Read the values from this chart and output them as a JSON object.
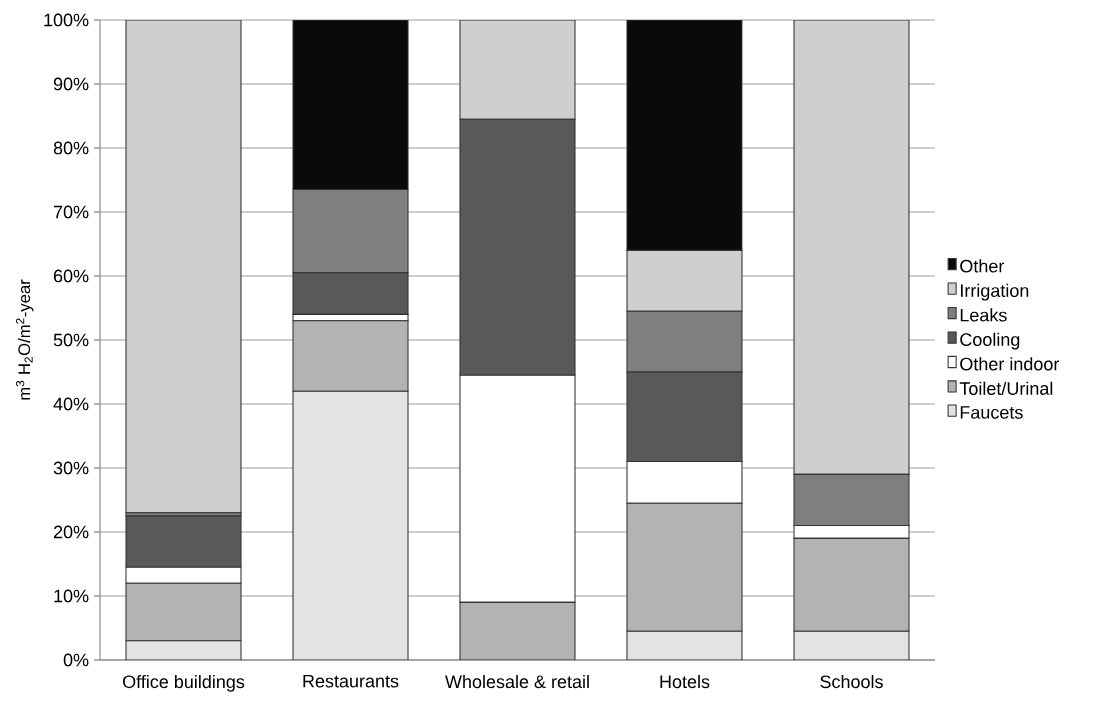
{
  "chart_data": {
    "type": "bar",
    "stacked": true,
    "ylabel": "m$^{3}$ H$_{2}$O/m$^{2}$-year",
    "categories": [
      "Office buildings",
      "Restaurants",
      "Wholesale & retail",
      "Hotels",
      "Schools"
    ],
    "ylim": [
      0,
      100
    ],
    "yticks": [
      {
        "value": 0,
        "label": "0%"
      },
      {
        "value": 10,
        "label": "10%"
      },
      {
        "value": 20,
        "label": "20%"
      },
      {
        "value": 30,
        "label": "30%"
      },
      {
        "value": 40,
        "label": "40%"
      },
      {
        "value": 50,
        "label": "50%"
      },
      {
        "value": 60,
        "label": "60%"
      },
      {
        "value": 70,
        "label": "70%"
      },
      {
        "value": 80,
        "label": "80%"
      },
      {
        "value": 90,
        "label": "90%"
      },
      {
        "value": 100,
        "label": "100%"
      }
    ],
    "grid": "y",
    "legend": "right",
    "series": [
      {
        "name": "Faucets",
        "color": "#e3e3e3",
        "values": [
          3,
          42,
          0,
          4.5,
          4.5
        ]
      },
      {
        "name": "Toilet/Urinal",
        "color": "#b3b3b3",
        "values": [
          9,
          11,
          9,
          20,
          14.5
        ]
      },
      {
        "name": "Other indoor",
        "color": "#ffffff",
        "values": [
          2.5,
          1,
          35.5,
          6.5,
          2
        ]
      },
      {
        "name": "Cooling",
        "color": "#595959",
        "values": [
          8,
          6.5,
          40,
          14,
          0
        ]
      },
      {
        "name": "Leaks",
        "color": "#7f7f7f",
        "values": [
          0.5,
          13,
          0,
          9.5,
          8
        ]
      },
      {
        "name": "Irrigation",
        "color": "#cfcfcf",
        "values": [
          77,
          0,
          15.5,
          9.5,
          71
        ]
      },
      {
        "name": "Other",
        "color": "#0a0a0a",
        "values": [
          0,
          26.5,
          0,
          36,
          0
        ]
      }
    ]
  }
}
